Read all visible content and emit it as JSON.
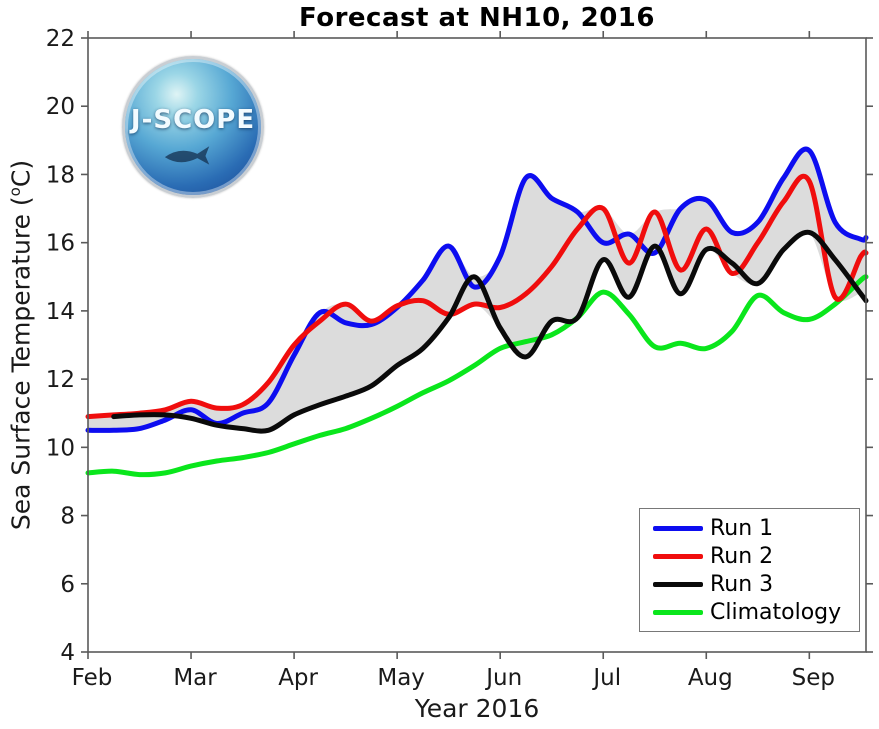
{
  "logo": {
    "text": "J-SCOPE"
  },
  "labels": {
    "ylabel_text": "Sea Surface Temperature (",
    "ylabel_sup": "o",
    "ylabel_close": "C)"
  },
  "chart_data": {
    "type": "line",
    "title": "Forecast at NH10, 2016",
    "xlabel": "Year 2016",
    "ylabel": "Sea Surface Temperature (oC)",
    "xlim": [
      2,
      9.55
    ],
    "ylim": [
      4,
      22
    ],
    "y_ticks": [
      4,
      6,
      8,
      10,
      12,
      14,
      16,
      18,
      20,
      22
    ],
    "x_ticks": [
      "Feb",
      "Mar",
      "Apr",
      "May",
      "Jun",
      "Jul",
      "Aug",
      "Sep"
    ],
    "x_tick_values": [
      2,
      3,
      4,
      5,
      6,
      7,
      8,
      9
    ],
    "grid": false,
    "legend_position": "lower right",
    "envelope_fill": "#dcdcdc",
    "envelope_note": "gray band spans min-max of Run 1, Run 2, Run 3",
    "x_unit": "month of 2016 (fractional)",
    "x": [
      2.0,
      2.25,
      2.5,
      2.75,
      3.0,
      3.25,
      3.5,
      3.75,
      4.0,
      4.25,
      4.5,
      4.75,
      5.0,
      5.25,
      5.5,
      5.75,
      6.0,
      6.25,
      6.5,
      6.75,
      7.0,
      7.25,
      7.5,
      7.75,
      8.0,
      8.25,
      8.5,
      8.75,
      9.0,
      9.25,
      9.5,
      9.55
    ],
    "series": [
      {
        "name": "Run 1",
        "color": "#0d0df0",
        "values": [
          10.5,
          10.5,
          10.55,
          10.8,
          11.1,
          10.7,
          11.0,
          11.3,
          12.7,
          13.95,
          13.65,
          13.6,
          14.1,
          14.9,
          15.9,
          14.7,
          15.6,
          17.9,
          17.3,
          16.9,
          16.0,
          16.25,
          15.7,
          17.0,
          17.25,
          16.3,
          16.6,
          17.9,
          18.7,
          16.6,
          16.1,
          16.15
        ]
      },
      {
        "name": "Run 2",
        "color": "#f00d0d",
        "values": [
          10.9,
          10.95,
          11.0,
          11.1,
          11.35,
          11.15,
          11.25,
          11.9,
          13.0,
          13.7,
          14.2,
          13.7,
          14.15,
          14.3,
          13.9,
          14.2,
          14.1,
          14.5,
          15.3,
          16.4,
          17.0,
          15.4,
          16.9,
          15.2,
          16.4,
          15.1,
          16.0,
          17.2,
          17.8,
          14.4,
          15.6,
          15.7
        ]
      },
      {
        "name": "Run 3",
        "color": "#0a0a0a",
        "values": [
          null,
          10.9,
          10.95,
          10.95,
          10.85,
          10.65,
          10.55,
          10.5,
          10.95,
          11.25,
          11.5,
          11.8,
          12.4,
          12.9,
          13.8,
          15.0,
          13.5,
          12.65,
          13.7,
          13.8,
          15.5,
          14.4,
          15.9,
          14.5,
          15.8,
          15.4,
          14.8,
          15.8,
          16.3,
          15.5,
          14.5,
          14.3
        ]
      },
      {
        "name": "Climatology",
        "color": "#0ae61c",
        "values": [
          9.25,
          9.3,
          9.2,
          9.25,
          9.45,
          9.6,
          9.7,
          9.85,
          10.1,
          10.35,
          10.55,
          10.85,
          11.2,
          11.6,
          11.95,
          12.4,
          12.9,
          13.1,
          13.3,
          13.8,
          14.55,
          13.9,
          12.95,
          13.05,
          12.9,
          13.4,
          14.45,
          13.95,
          13.75,
          14.2,
          14.9,
          15.0
        ]
      }
    ]
  }
}
